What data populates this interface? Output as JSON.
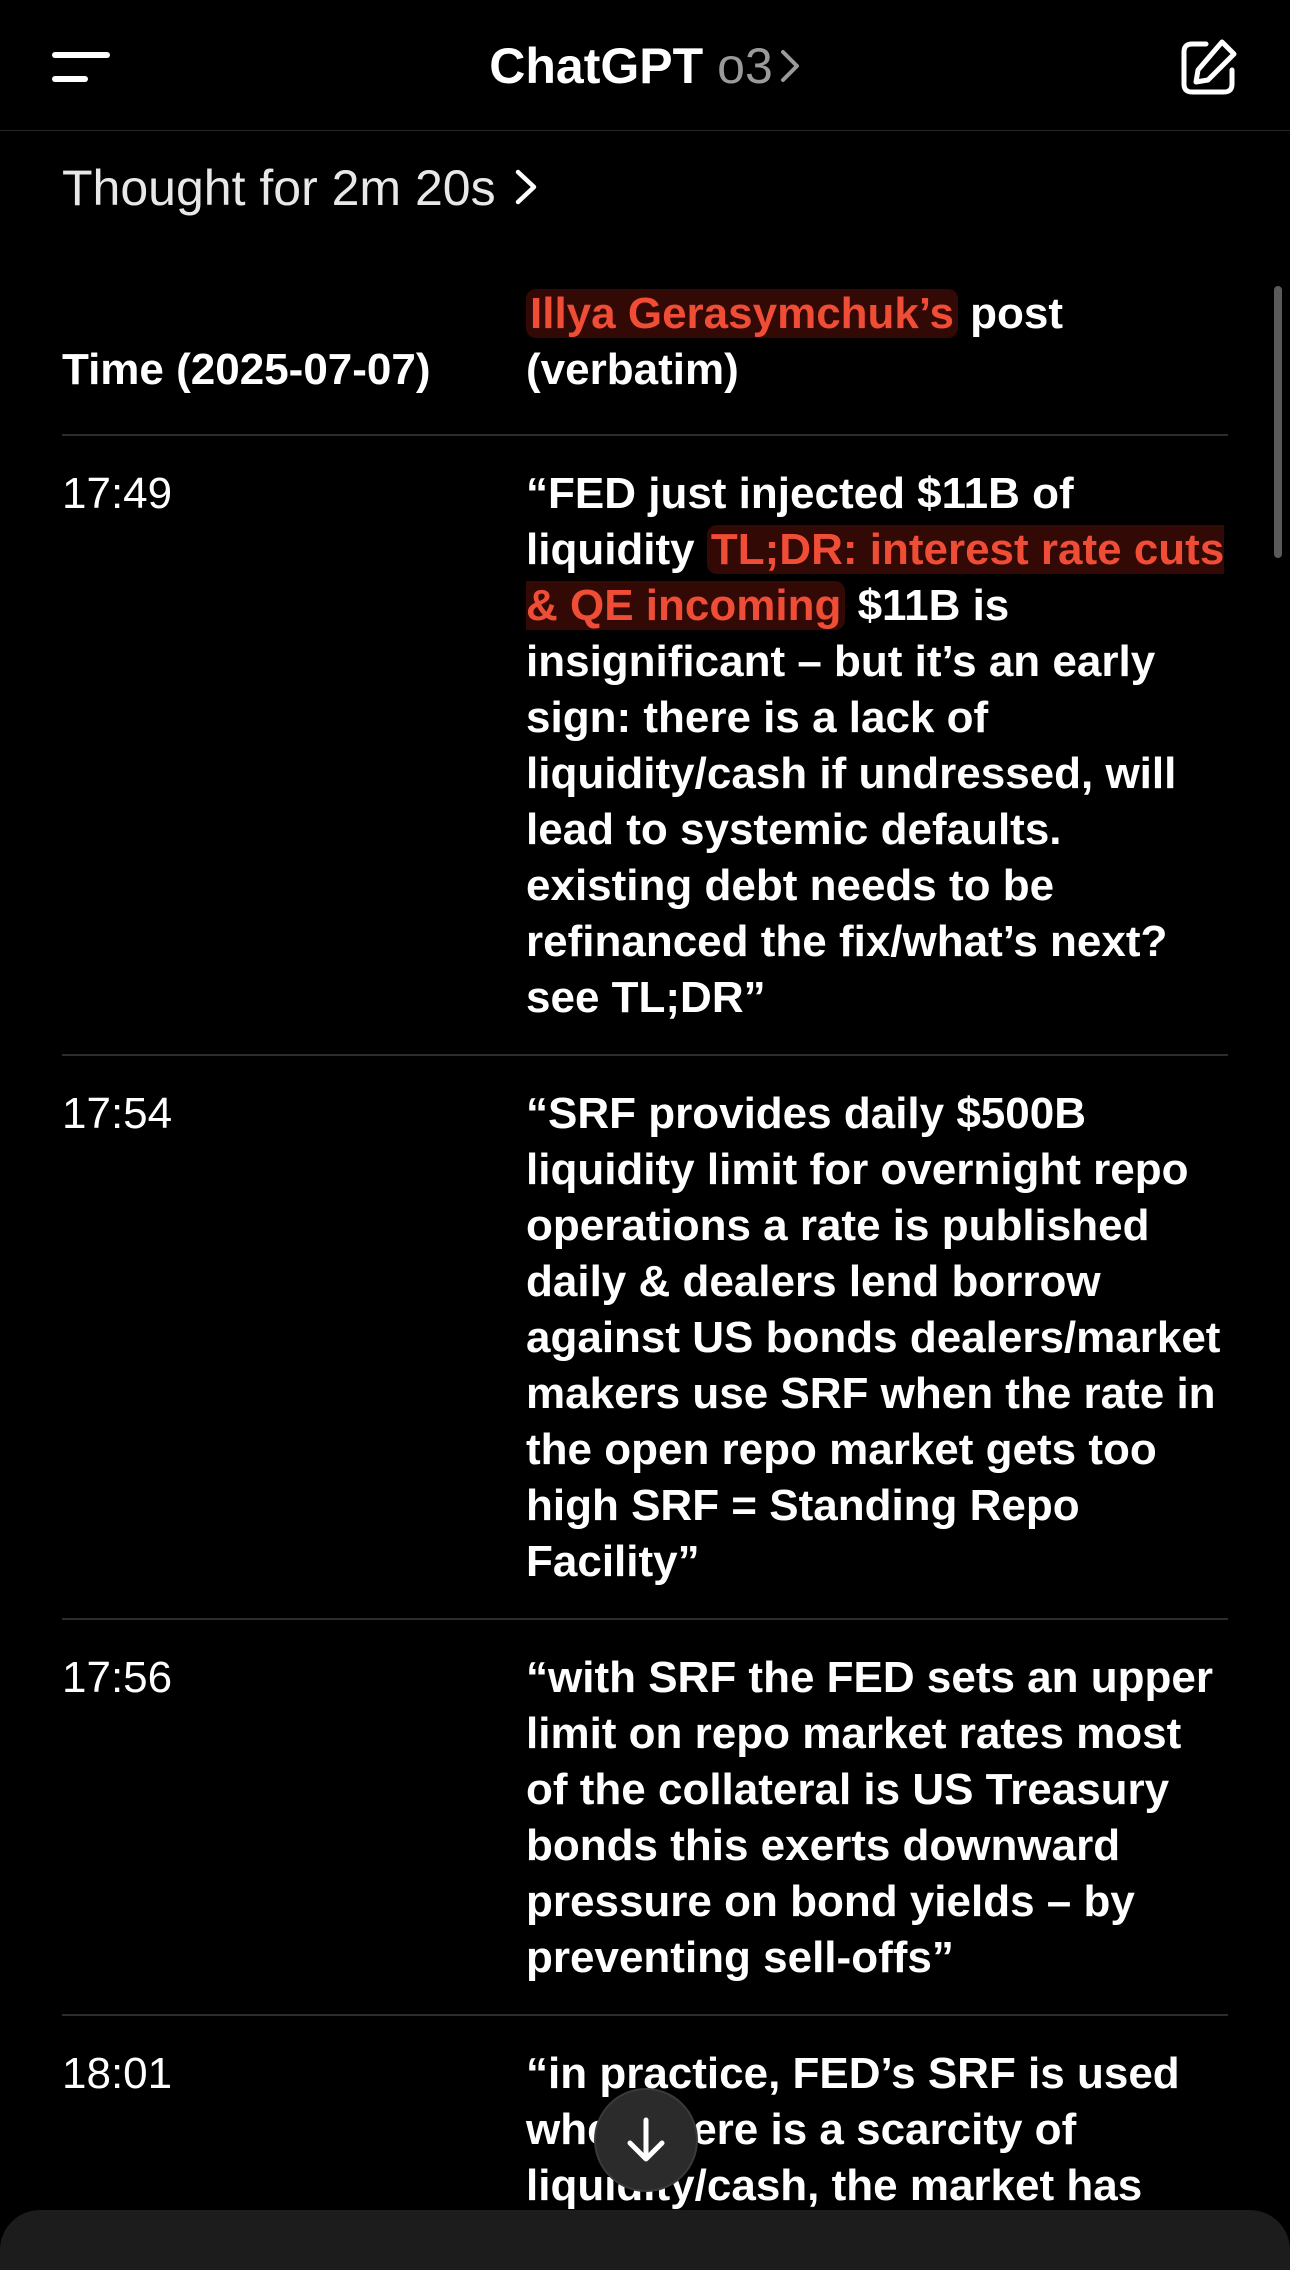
{
  "header": {
    "app_name": "ChatGPT",
    "model": "o3",
    "menu_icon": "hamburger-menu-icon",
    "new_chat_icon": "compose-icon"
  },
  "thought": {
    "label": "Thought for 2m 20s"
  },
  "table": {
    "headers": {
      "time": "Time (2025-07-07)",
      "post_author": "Illya Gerasymchuk’s",
      "post_suffix": " post (verbatim)"
    },
    "rows": [
      {
        "time": "17:49",
        "pre": "“FED just injected $11B of liquidity  ",
        "highlight": "TL;DR: interest rate cuts & QE incoming",
        "post": " $11B is insignificant – but it’s an early sign: there is a lack of liquidity/cash  if undressed, will lead to systemic defaults. existing debt needs to be refinanced  the fix/what’s next? see TL;DR”"
      },
      {
        "time": "17:54",
        "pre": "“SRF provides daily $500B liquidity limit for overnight repo operations  a rate is published daily & dealers lend borrow against US bonds  dealers/market makers use SRF when the rate in the open repo market gets too high  SRF = Standing Repo Facility”",
        "highlight": "",
        "post": ""
      },
      {
        "time": "17:56",
        "pre": "“with SRF the FED sets an upper limit on repo market rates  most of the collateral is US Treasury bonds  this exerts downward pressure on bond yields – by preventing sell-offs”",
        "highlight": "",
        "post": ""
      },
      {
        "time": "18:01",
        "pre": "“in practice, FED’s SRF is used when there is a scarcity of liquidity/cash, the market has",
        "highlight": "",
        "post": ""
      }
    ]
  },
  "colors": {
    "background": "#000000",
    "text": "#ffffff",
    "muted": "#9a9a9a",
    "highlight": "#ef4d36"
  },
  "scroll_button_icon": "arrow-down-icon"
}
